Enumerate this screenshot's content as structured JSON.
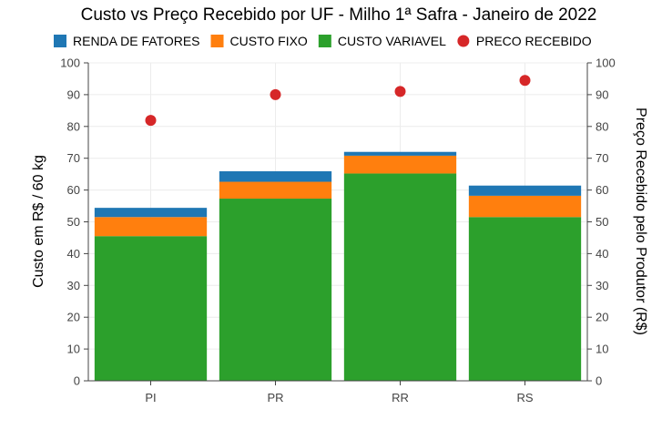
{
  "chart_data": {
    "type": "bar",
    "stacked": true,
    "title": "Custo vs Preço Recebido por UF - Milho 1ª Safra - Janeiro de 2022",
    "ylabel": "Custo em R$ / 60 kg",
    "y2label": "Preço Recebido pelo Produtor (R$)",
    "xlabel": "",
    "categories": [
      "PI",
      "PR",
      "RR",
      "RS"
    ],
    "ylim": [
      0,
      100
    ],
    "y2lim": [
      0,
      100
    ],
    "yticks": [
      0,
      10,
      20,
      30,
      40,
      50,
      60,
      70,
      80,
      90,
      100
    ],
    "grid": true,
    "legend_position": "top",
    "series": [
      {
        "name": "CUSTO VARIAVEL",
        "kind": "bar",
        "color": "#2ca02c",
        "values": [
          45.5,
          57.3,
          65.2,
          51.5
        ]
      },
      {
        "name": "CUSTO FIXO",
        "kind": "bar",
        "color": "#ff7f0e",
        "values": [
          6.0,
          5.3,
          5.6,
          6.7
        ]
      },
      {
        "name": "RENDA DE FATORES",
        "kind": "bar",
        "color": "#1f77b4",
        "values": [
          2.9,
          3.3,
          1.2,
          3.2
        ]
      },
      {
        "name": "PRECO RECEBIDO",
        "kind": "scatter",
        "color": "#d62728",
        "axis": "right",
        "values": [
          81.9,
          90.0,
          91.0,
          94.5
        ]
      }
    ],
    "legend_order": [
      "RENDA DE FATORES",
      "CUSTO FIXO",
      "CUSTO VARIAVEL",
      "PRECO RECEBIDO"
    ]
  }
}
